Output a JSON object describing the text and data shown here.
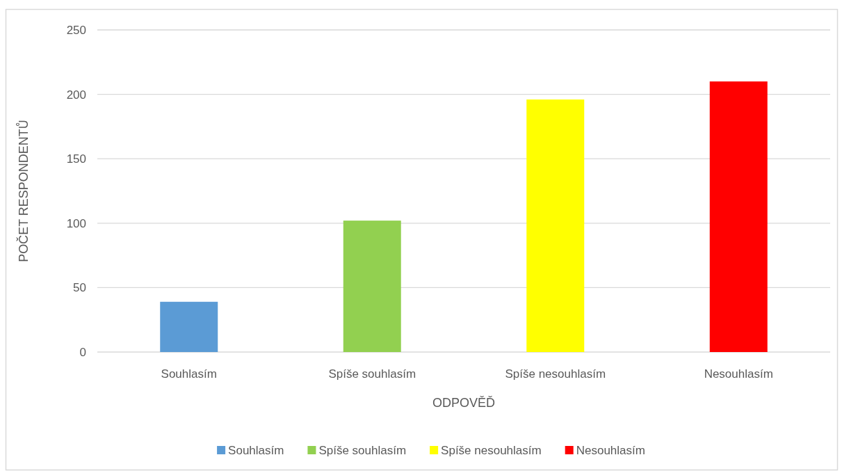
{
  "chart_data": {
    "type": "bar",
    "xlabel": "ODPOVĚĎ",
    "ylabel": "POČET RESPONDENTŮ",
    "categories": [
      "Souhlasím",
      "Spíše souhlasím",
      "Spíše nesouhlasím",
      "Nesouhlasím"
    ],
    "series": [
      {
        "name": "Souhlasím",
        "color": "#5b9bd5",
        "values": [
          39,
          null,
          null,
          null
        ]
      },
      {
        "name": "Spíše souhlasím",
        "color": "#92d050",
        "values": [
          null,
          102,
          null,
          null
        ]
      },
      {
        "name": "Spíše nesouhlasím",
        "color": "#ffff00",
        "values": [
          null,
          null,
          196,
          null
        ]
      },
      {
        "name": "Nesouhlasím",
        "color": "#ff0000",
        "values": [
          null,
          null,
          null,
          210
        ]
      }
    ],
    "stacked": true,
    "ylim": [
      0,
      250
    ],
    "yticks": [
      0,
      50,
      100,
      150,
      200,
      250
    ],
    "grid": "y",
    "legend": "bottom"
  }
}
